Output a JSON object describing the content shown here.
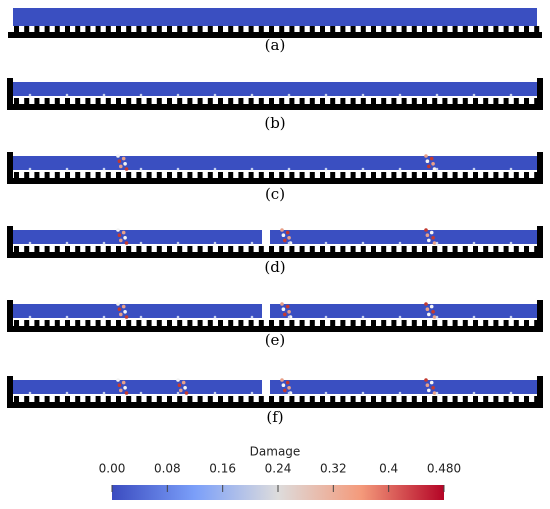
{
  "panels": [
    {
      "label": "(a)"
    },
    {
      "label": "(b)"
    },
    {
      "label": "(c)"
    },
    {
      "label": "(d)"
    },
    {
      "label": "(e)"
    },
    {
      "label": "(f)"
    }
  ],
  "colorbar": {
    "title": "Damage",
    "range": [
      0,
      0.48
    ],
    "ticks": [
      {
        "value": 0,
        "label": "0.00"
      },
      0.08,
      0.16,
      0.24,
      0.32,
      0.4,
      {
        "value": 0.48,
        "label": "0.480"
      }
    ]
  }
}
